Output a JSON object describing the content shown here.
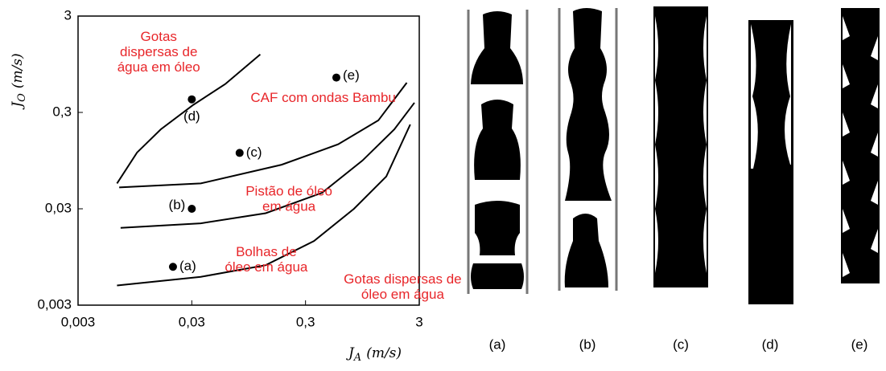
{
  "chart_data": {
    "type": "scatter",
    "log_x": true,
    "log_y": true,
    "xlim": [
      0.003,
      3
    ],
    "ylim": [
      0.003,
      3
    ],
    "xticks": [
      {
        "value": 0.003,
        "label": "0,003"
      },
      {
        "value": 0.03,
        "label": "0,03"
      },
      {
        "value": 0.3,
        "label": "0,3"
      },
      3
    ],
    "yticks": [
      {
        "value": 0.003,
        "label": "0,003"
      },
      {
        "value": 0.03,
        "label": "0,03"
      },
      {
        "value": 0.3,
        "label": "0,3"
      },
      3
    ],
    "xlabel": {
      "symbol": "J",
      "subscript": "A",
      "unit": "(m/s)"
    },
    "ylabel": {
      "symbol": "J",
      "subscript": "O",
      "unit": "(m/s)"
    },
    "point_color": "#000000",
    "line_color": "#000000",
    "annotation_color": "#e8262a",
    "points": {
      "x": [
        0.0205,
        0.03,
        0.079,
        0.03,
        0.56
      ],
      "y": [
        0.0075,
        0.03,
        0.114,
        0.41,
        0.69
      ],
      "labels": [
        "(a)",
        "(b)",
        "(c)",
        "(d)",
        "(e)"
      ]
    },
    "boundaries": [
      {
        "x": [
          0.0066,
          0.0099,
          0.016,
          0.031,
          0.059,
          0.12
        ],
        "y": [
          0.055,
          0.115,
          0.2,
          0.36,
          0.59,
          1.2
        ]
      },
      {
        "x": [
          0.0069,
          0.036,
          0.185,
          0.58,
          1.31,
          2.33
        ],
        "y": [
          0.05,
          0.055,
          0.086,
          0.14,
          0.248,
          0.61
        ]
      },
      {
        "x": [
          0.0071,
          0.036,
          0.134,
          0.42,
          0.95,
          1.81,
          2.72
        ],
        "y": [
          0.019,
          0.0212,
          0.027,
          0.044,
          0.095,
          0.2,
          0.378
        ]
      },
      {
        "x": [
          0.0066,
          0.036,
          0.134,
          0.356,
          0.8,
          1.54,
          2.5
        ],
        "y": [
          0.0048,
          0.0059,
          0.0078,
          0.0139,
          0.03,
          0.065,
          0.225
        ]
      }
    ],
    "annotations": [
      {
        "lines": [
          "Gotas",
          "dispersas de",
          "água em óleo"
        ],
        "x": 0.0068,
        "y": 1.8
      },
      {
        "lines": [
          "CAF com ondas Bambu"
        ],
        "x": 0.19,
        "y": 0.42
      },
      {
        "lines": [
          "Pistão de óleo",
          "em água"
        ],
        "x": 0.095,
        "y": 0.045
      },
      {
        "lines": [
          "Bolhas de",
          "óleo em água"
        ],
        "x": 0.06,
        "y": 0.0105
      },
      {
        "lines": [
          "Gotas dispersas de",
          "óleo em água"
        ],
        "x": 0.95,
        "y": 0.0055
      }
    ]
  },
  "photo_labels": [
    "(a)",
    "(b)",
    "(c)",
    "(d)",
    "(e)"
  ]
}
